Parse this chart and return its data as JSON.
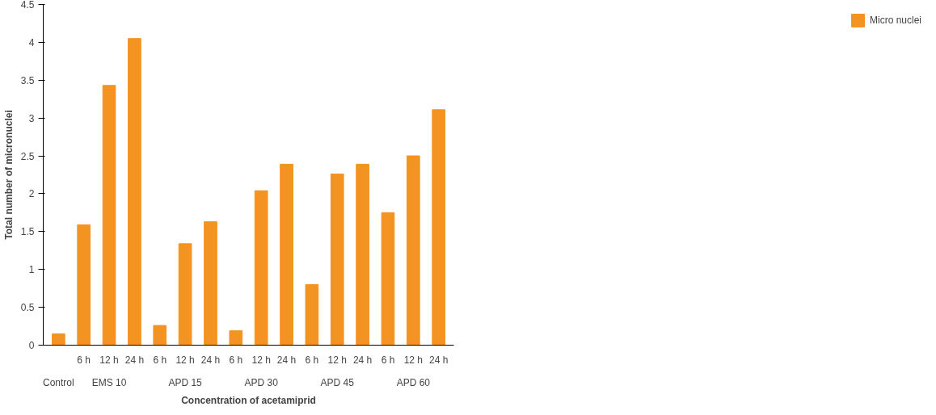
{
  "chart_data": {
    "type": "bar",
    "xlabel": "Concentration of acetamiprid",
    "ylabel": "Total number of micronuclei",
    "categories": [
      null,
      "6 h",
      "12 h",
      "24 h",
      "6 h",
      "12 h",
      "24 h",
      "6 h",
      "12 h",
      "24 h",
      "6 h",
      "12 h",
      "24 h",
      "6 h",
      "12 h",
      "24 h"
    ],
    "series": [
      {
        "name": "Micro nuclei",
        "color": "#f39322",
        "values": [
          0.15,
          1.59,
          3.43,
          4.05,
          0.26,
          1.34,
          1.63,
          0.19,
          2.04,
          2.39,
          0.8,
          2.26,
          2.39,
          1.75,
          2.5,
          3.11
        ]
      }
    ],
    "annotations": [
      "Control",
      "EMS 10",
      "APD 15",
      "APD 30",
      "APD 45",
      "APD 60"
    ],
    "ylim": [
      0,
      4.5
    ],
    "yticks": [
      0,
      0.5,
      1,
      1.5,
      2,
      2.5,
      3,
      3.5,
      4,
      4.5
    ],
    "grid": false,
    "legend": "right"
  }
}
